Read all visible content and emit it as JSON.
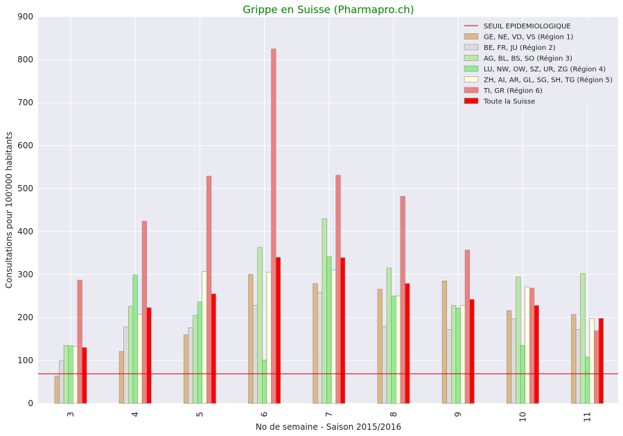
{
  "chart_data": {
    "type": "bar",
    "title": "Grippe en Suisse (Pharmapro.ch)",
    "xlabel": "No de semaine - Saison 2015/2016",
    "ylabel": "Consultations pour 100'000 habitants",
    "ylim": [
      0,
      900
    ],
    "yticks": [
      "0",
      "100",
      "200",
      "300",
      "400",
      "500",
      "600",
      "700",
      "800",
      "900"
    ],
    "categories": [
      "3",
      "4",
      "5",
      "6",
      "7",
      "8",
      "9",
      "10",
      "11"
    ],
    "threshold": {
      "name": "SEUIL EPIDEMIOLOGIQUE",
      "value": 69,
      "color": "#cc0000"
    },
    "series": [
      {
        "name": "GE, NE, VD, VS (Région 1)",
        "color": "#deb887",
        "values": [
          64,
          121,
          160,
          300,
          279,
          266,
          285,
          216,
          207
        ]
      },
      {
        "name": "BE, FR, JU (Région 2)",
        "color": "#dcdcdc",
        "values": [
          100,
          178,
          176,
          228,
          258,
          179,
          172,
          197,
          172
        ]
      },
      {
        "name": "AG, BL, BS, SO (Région 3)",
        "color": "#b9eaa5",
        "values": [
          135,
          226,
          205,
          363,
          430,
          315,
          228,
          294,
          302
        ]
      },
      {
        "name": "LU, NW, OW, SZ, UR, ZG (Région 4)",
        "color": "#90ee90",
        "values": [
          134,
          299,
          236,
          101,
          342,
          250,
          222,
          135,
          108
        ]
      },
      {
        "name": "ZH, AI, AR, GL, SG, SH, TG (Région 5)",
        "color": "#ffffe0",
        "values": [
          133,
          207,
          307,
          305,
          310,
          250,
          228,
          271,
          198
        ]
      },
      {
        "name": "TI, GR (Région 6)",
        "color": "#f08080",
        "values": [
          287,
          424,
          529,
          825,
          531,
          482,
          357,
          268,
          169
        ]
      },
      {
        "name": "Toute la Suisse",
        "color": "#ff0000",
        "values": [
          130,
          223,
          255,
          340,
          339,
          279,
          242,
          228,
          198
        ]
      }
    ],
    "grid": true,
    "legend_position": "top-right"
  }
}
